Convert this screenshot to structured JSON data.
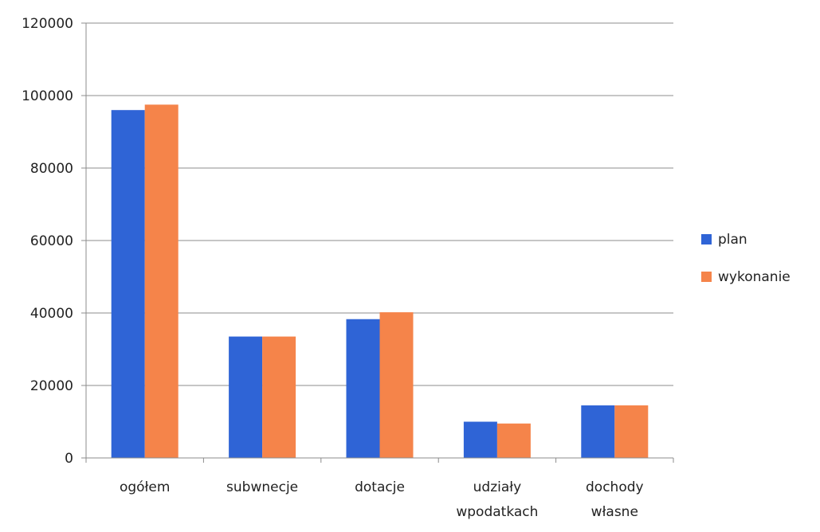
{
  "chart_data": {
    "type": "bar",
    "categories": [
      [
        "ogółem"
      ],
      [
        "subwnecje"
      ],
      [
        "dotacje"
      ],
      [
        "udziały",
        "wpodatkach"
      ],
      [
        "dochody",
        "własne"
      ]
    ],
    "series": [
      {
        "name": "plan",
        "color": "#2f64d6",
        "values": [
          96000,
          33500,
          38300,
          10000,
          14500
        ]
      },
      {
        "name": "wykonanie",
        "color": "#f5844a",
        "values": [
          97500,
          33500,
          40200,
          9500,
          14500
        ]
      }
    ],
    "ylim": [
      0,
      120000
    ],
    "yticks": [
      "0",
      "20000",
      "40000",
      "60000",
      "80000",
      "100000",
      "120000"
    ],
    "grid": true,
    "legend": "right"
  }
}
